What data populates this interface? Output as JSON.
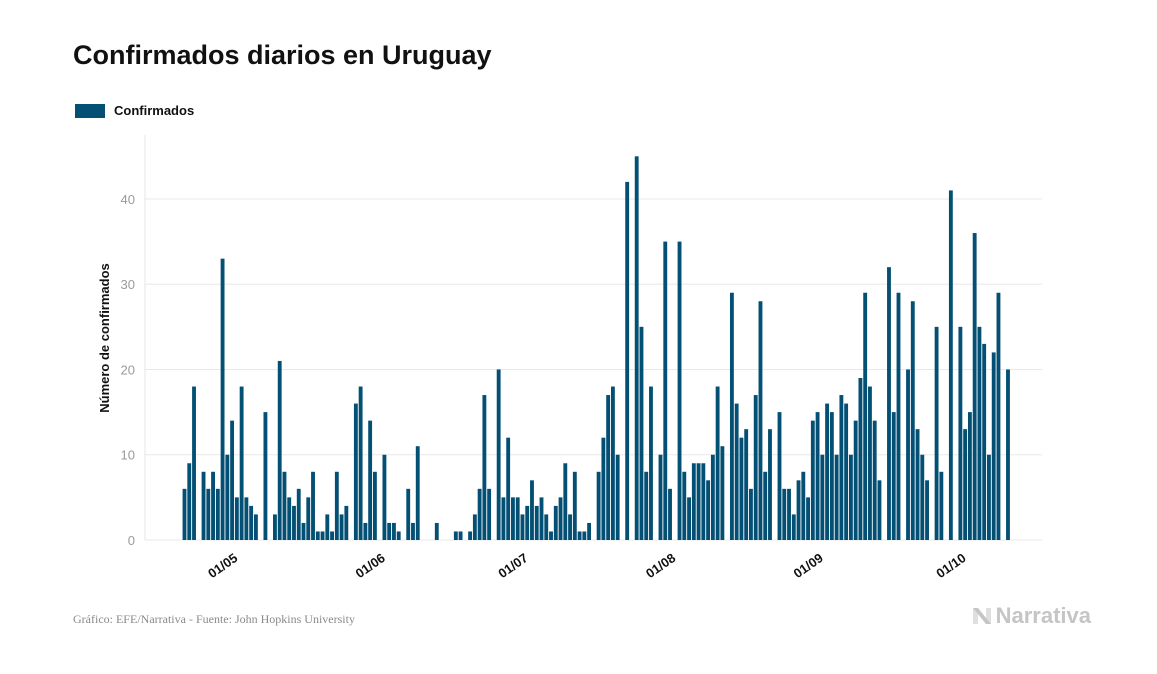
{
  "title": "Confirmados diarios en Uruguay",
  "legend": {
    "label": "Confirmados",
    "color": "#044f74"
  },
  "footer": {
    "source": "Gráfico: EFE/Narrativa - Fuente: John Hopkins University"
  },
  "brand": {
    "name": "Narrativa",
    "icon": "narrativa-logo-icon"
  },
  "chart_data": {
    "type": "bar",
    "title": "Confirmados diarios en Uruguay",
    "xlabel": "",
    "ylabel": "Número de confirmados",
    "ylim": [
      0,
      47.5
    ],
    "yticks": [
      0,
      10,
      20,
      30,
      40
    ],
    "grid": true,
    "legend_position": "top-left",
    "x_start": "2020-04-15",
    "x_end": "2020-10-11",
    "xticks": [
      {
        "label": "01/05",
        "date": "2020-05-01"
      },
      {
        "label": "01/06",
        "date": "2020-06-01"
      },
      {
        "label": "01/07",
        "date": "2020-07-01"
      },
      {
        "label": "01/08",
        "date": "2020-08-01"
      },
      {
        "label": "01/09",
        "date": "2020-09-01"
      },
      {
        "label": "01/10",
        "date": "2020-10-01"
      }
    ],
    "series": [
      {
        "name": "Confirmados",
        "color": "#044f74",
        "points": [
          [
            "2020-04-23",
            6
          ],
          [
            "2020-04-24",
            9
          ],
          [
            "2020-04-25",
            18
          ],
          [
            "2020-04-26",
            0
          ],
          [
            "2020-04-27",
            8
          ],
          [
            "2020-04-28",
            6
          ],
          [
            "2020-04-29",
            8
          ],
          [
            "2020-04-30",
            6
          ],
          [
            "2020-05-01",
            33
          ],
          [
            "2020-05-02",
            10
          ],
          [
            "2020-05-03",
            14
          ],
          [
            "2020-05-04",
            5
          ],
          [
            "2020-05-05",
            18
          ],
          [
            "2020-05-06",
            5
          ],
          [
            "2020-05-07",
            4
          ],
          [
            "2020-05-08",
            3
          ],
          [
            "2020-05-09",
            0
          ],
          [
            "2020-05-10",
            15
          ],
          [
            "2020-05-11",
            0
          ],
          [
            "2020-05-12",
            3
          ],
          [
            "2020-05-13",
            21
          ],
          [
            "2020-05-14",
            8
          ],
          [
            "2020-05-15",
            5
          ],
          [
            "2020-05-16",
            4
          ],
          [
            "2020-05-17",
            6
          ],
          [
            "2020-05-18",
            2
          ],
          [
            "2020-05-19",
            5
          ],
          [
            "2020-05-20",
            8
          ],
          [
            "2020-05-21",
            1
          ],
          [
            "2020-05-22",
            1
          ],
          [
            "2020-05-23",
            3
          ],
          [
            "2020-05-24",
            1
          ],
          [
            "2020-05-25",
            8
          ],
          [
            "2020-05-26",
            3
          ],
          [
            "2020-05-27",
            4
          ],
          [
            "2020-05-28",
            0
          ],
          [
            "2020-05-29",
            16
          ],
          [
            "2020-05-30",
            18
          ],
          [
            "2020-05-31",
            2
          ],
          [
            "2020-06-01",
            14
          ],
          [
            "2020-06-02",
            8
          ],
          [
            "2020-06-03",
            0
          ],
          [
            "2020-06-04",
            10
          ],
          [
            "2020-06-05",
            2
          ],
          [
            "2020-06-06",
            2
          ],
          [
            "2020-06-07",
            1
          ],
          [
            "2020-06-08",
            0
          ],
          [
            "2020-06-09",
            6
          ],
          [
            "2020-06-10",
            2
          ],
          [
            "2020-06-11",
            11
          ],
          [
            "2020-06-12",
            0
          ],
          [
            "2020-06-13",
            0
          ],
          [
            "2020-06-14",
            0
          ],
          [
            "2020-06-15",
            2
          ],
          [
            "2020-06-16",
            0
          ],
          [
            "2020-06-17",
            0
          ],
          [
            "2020-06-18",
            0
          ],
          [
            "2020-06-19",
            1
          ],
          [
            "2020-06-20",
            1
          ],
          [
            "2020-06-21",
            0
          ],
          [
            "2020-06-22",
            1
          ],
          [
            "2020-06-23",
            3
          ],
          [
            "2020-06-24",
            6
          ],
          [
            "2020-06-25",
            17
          ],
          [
            "2020-06-26",
            6
          ],
          [
            "2020-06-27",
            0
          ],
          [
            "2020-06-28",
            20
          ],
          [
            "2020-06-29",
            5
          ],
          [
            "2020-06-30",
            12
          ],
          [
            "2020-07-01",
            5
          ],
          [
            "2020-07-02",
            5
          ],
          [
            "2020-07-03",
            3
          ],
          [
            "2020-07-04",
            4
          ],
          [
            "2020-07-05",
            7
          ],
          [
            "2020-07-06",
            4
          ],
          [
            "2020-07-07",
            5
          ],
          [
            "2020-07-08",
            3
          ],
          [
            "2020-07-09",
            1
          ],
          [
            "2020-07-10",
            4
          ],
          [
            "2020-07-11",
            5
          ],
          [
            "2020-07-12",
            9
          ],
          [
            "2020-07-13",
            3
          ],
          [
            "2020-07-14",
            8
          ],
          [
            "2020-07-15",
            1
          ],
          [
            "2020-07-16",
            1
          ],
          [
            "2020-07-17",
            2
          ],
          [
            "2020-07-18",
            0
          ],
          [
            "2020-07-19",
            8
          ],
          [
            "2020-07-20",
            12
          ],
          [
            "2020-07-21",
            17
          ],
          [
            "2020-07-22",
            18
          ],
          [
            "2020-07-23",
            10
          ],
          [
            "2020-07-24",
            0
          ],
          [
            "2020-07-25",
            42
          ],
          [
            "2020-07-26",
            0
          ],
          [
            "2020-07-27",
            45
          ],
          [
            "2020-07-28",
            25
          ],
          [
            "2020-07-29",
            8
          ],
          [
            "2020-07-30",
            18
          ],
          [
            "2020-07-31",
            0
          ],
          [
            "2020-08-01",
            10
          ],
          [
            "2020-08-02",
            35
          ],
          [
            "2020-08-03",
            6
          ],
          [
            "2020-08-04",
            0
          ],
          [
            "2020-08-05",
            35
          ],
          [
            "2020-08-06",
            8
          ],
          [
            "2020-08-07",
            5
          ],
          [
            "2020-08-08",
            9
          ],
          [
            "2020-08-09",
            9
          ],
          [
            "2020-08-10",
            9
          ],
          [
            "2020-08-11",
            7
          ],
          [
            "2020-08-12",
            10
          ],
          [
            "2020-08-13",
            18
          ],
          [
            "2020-08-14",
            11
          ],
          [
            "2020-08-15",
            0
          ],
          [
            "2020-08-16",
            29
          ],
          [
            "2020-08-17",
            16
          ],
          [
            "2020-08-18",
            12
          ],
          [
            "2020-08-19",
            13
          ],
          [
            "2020-08-20",
            6
          ],
          [
            "2020-08-21",
            17
          ],
          [
            "2020-08-22",
            28
          ],
          [
            "2020-08-23",
            8
          ],
          [
            "2020-08-24",
            13
          ],
          [
            "2020-08-25",
            0
          ],
          [
            "2020-08-26",
            15
          ],
          [
            "2020-08-27",
            6
          ],
          [
            "2020-08-28",
            6
          ],
          [
            "2020-08-29",
            3
          ],
          [
            "2020-08-30",
            7
          ],
          [
            "2020-08-31",
            8
          ],
          [
            "2020-09-01",
            5
          ],
          [
            "2020-09-02",
            14
          ],
          [
            "2020-09-03",
            15
          ],
          [
            "2020-09-04",
            10
          ],
          [
            "2020-09-05",
            16
          ],
          [
            "2020-09-06",
            15
          ],
          [
            "2020-09-07",
            10
          ],
          [
            "2020-09-08",
            17
          ],
          [
            "2020-09-09",
            16
          ],
          [
            "2020-09-10",
            10
          ],
          [
            "2020-09-11",
            14
          ],
          [
            "2020-09-12",
            19
          ],
          [
            "2020-09-13",
            29
          ],
          [
            "2020-09-14",
            18
          ],
          [
            "2020-09-15",
            14
          ],
          [
            "2020-09-16",
            7
          ],
          [
            "2020-09-17",
            0
          ],
          [
            "2020-09-18",
            32
          ],
          [
            "2020-09-19",
            15
          ],
          [
            "2020-09-20",
            29
          ],
          [
            "2020-09-21",
            0
          ],
          [
            "2020-09-22",
            20
          ],
          [
            "2020-09-23",
            28
          ],
          [
            "2020-09-24",
            13
          ],
          [
            "2020-09-25",
            10
          ],
          [
            "2020-09-26",
            7
          ],
          [
            "2020-09-27",
            0
          ],
          [
            "2020-09-28",
            25
          ],
          [
            "2020-09-29",
            8
          ],
          [
            "2020-09-30",
            0
          ],
          [
            "2020-10-01",
            41
          ],
          [
            "2020-10-02",
            0
          ],
          [
            "2020-10-03",
            25
          ],
          [
            "2020-10-04",
            13
          ],
          [
            "2020-10-05",
            15
          ],
          [
            "2020-10-06",
            36
          ],
          [
            "2020-10-07",
            25
          ],
          [
            "2020-10-08",
            23
          ],
          [
            "2020-10-09",
            10
          ],
          [
            "2020-10-10",
            22
          ],
          [
            "2020-10-11",
            29
          ],
          [
            "2020-10-12",
            0
          ],
          [
            "2020-10-13",
            20
          ]
        ]
      }
    ]
  }
}
